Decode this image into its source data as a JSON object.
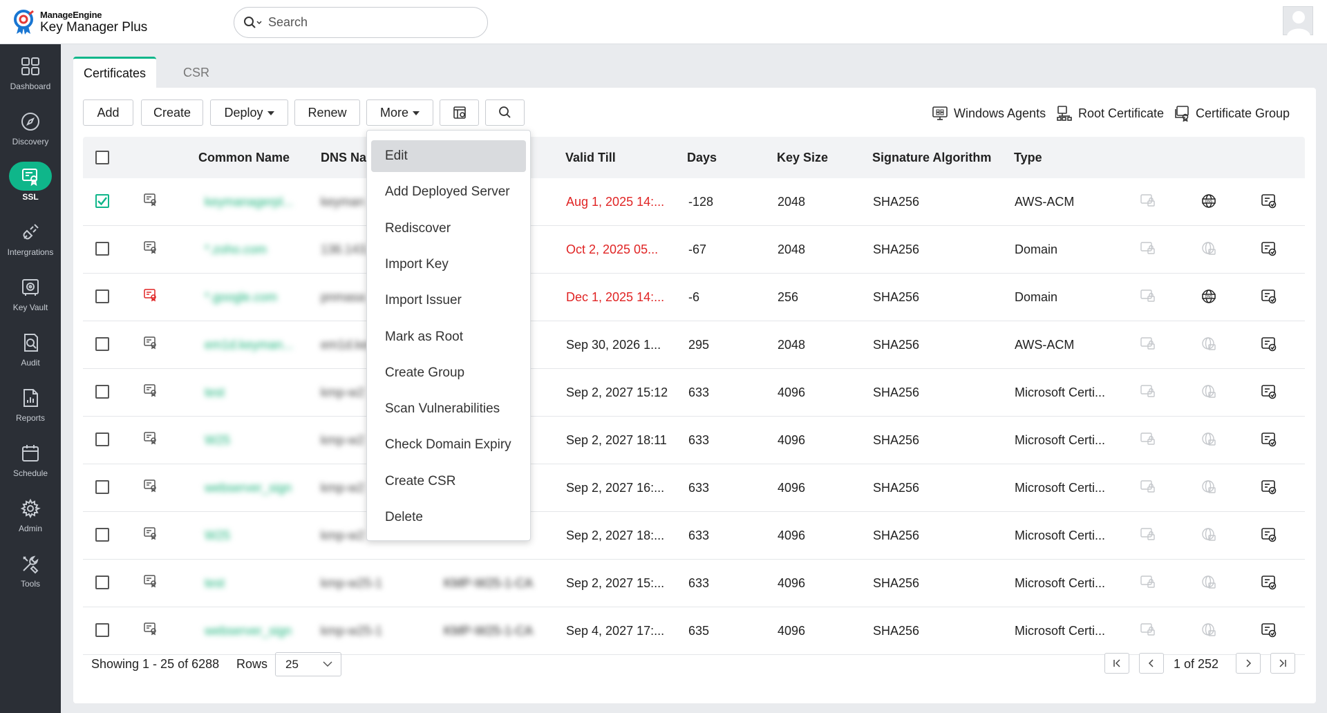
{
  "header": {
    "brand": "ManageEngine",
    "product_main": "Key Manager",
    "product_suffix": "Plus",
    "search_placeholder": "Search"
  },
  "sidebar": {
    "items": [
      {
        "label": "Dashboard",
        "icon": "dashboard-icon"
      },
      {
        "label": "Discovery",
        "icon": "compass-icon"
      },
      {
        "label": "SSL",
        "icon": "certificate-icon",
        "active": true
      },
      {
        "label": "Intergrations",
        "icon": "plug-icon"
      },
      {
        "label": "Key Vault",
        "icon": "vault-icon"
      },
      {
        "label": "Audit",
        "icon": "audit-icon"
      },
      {
        "label": "Reports",
        "icon": "reports-icon"
      },
      {
        "label": "Schedule",
        "icon": "calendar-icon"
      },
      {
        "label": "Admin",
        "icon": "gear-icon"
      },
      {
        "label": "Tools",
        "icon": "tools-icon"
      }
    ]
  },
  "tabs": {
    "certificates": "Certificates",
    "csr": "CSR"
  },
  "toolbar": {
    "add": "Add",
    "create": "Create",
    "deploy": "Deploy",
    "renew": "Renew",
    "more": "More",
    "windows_agents": "Windows Agents",
    "root_certificate": "Root Certificate",
    "certificate_group": "Certificate Group"
  },
  "more_menu": {
    "items": [
      "Edit",
      "Add Deployed Server",
      "Rediscover",
      "Import Key",
      "Import Issuer",
      "Mark as Root",
      "Create Group",
      "Scan Vulnerabilities",
      "Check Domain Expiry",
      "Create CSR",
      "Delete"
    ],
    "highlighted": "Edit"
  },
  "table": {
    "headers": {
      "common_name": "Common Name",
      "dns_name": "DNS Nar",
      "valid_till": "Valid Till",
      "days": "Days",
      "key_size": "Key Size",
      "signature_algorithm": "Signature Algorithm",
      "type": "Type"
    },
    "rows": [
      {
        "checked": true,
        "cn": "keymanagerpl...",
        "dns": "keyman",
        "issuer": "",
        "valid_till": "Aug 1, 2025 14:...",
        "expired": true,
        "days": "-128",
        "key_size": "2048",
        "sig": "SHA256",
        "type": "AWS-ACM",
        "dns_active": true
      },
      {
        "checked": false,
        "cn": "*.zoho.com",
        "dns": "136.143.",
        "issuer": "",
        "valid_till": "Oct 2, 2025 05...",
        "expired": true,
        "days": "-67",
        "key_size": "2048",
        "sig": "SHA256",
        "type": "Domain",
        "dns_active": false
      },
      {
        "checked": false,
        "cn": "*.google.com",
        "dns": "pnmasa",
        "issuer": "",
        "valid_till": "Dec 1, 2025 14:...",
        "expired": true,
        "days": "-6",
        "key_size": "256",
        "sig": "SHA256",
        "type": "Domain",
        "dns_active": true
      },
      {
        "checked": false,
        "cn": "em1d.keyman...",
        "dns": "em1d.ke",
        "issuer": "",
        "valid_till": "Sep 30, 2026 1...",
        "expired": false,
        "days": "295",
        "key_size": "2048",
        "sig": "SHA256",
        "type": "AWS-ACM",
        "dns_active": false
      },
      {
        "checked": false,
        "cn": "test",
        "dns": "kmp-w2",
        "issuer": "",
        "valid_till": "Sep 2, 2027 15:12",
        "expired": false,
        "days": "633",
        "key_size": "4096",
        "sig": "SHA256",
        "type": "Microsoft Certi...",
        "dns_active": false
      },
      {
        "checked": false,
        "cn": "W25",
        "dns": "kmp-w2",
        "issuer": "",
        "valid_till": "Sep 2, 2027 18:11",
        "expired": false,
        "days": "633",
        "key_size": "4096",
        "sig": "SHA256",
        "type": "Microsoft Certi...",
        "dns_active": false
      },
      {
        "checked": false,
        "cn": "webserver_sign",
        "dns": "kmp-w2",
        "issuer": "",
        "valid_till": "Sep 2, 2027 16:...",
        "expired": false,
        "days": "633",
        "key_size": "4096",
        "sig": "SHA256",
        "type": "Microsoft Certi...",
        "dns_active": false
      },
      {
        "checked": false,
        "cn": "W25",
        "dns": "kmp-w2",
        "issuer": "",
        "valid_till": "Sep 2, 2027 18:...",
        "expired": false,
        "days": "633",
        "key_size": "4096",
        "sig": "SHA256",
        "type": "Microsoft Certi...",
        "dns_active": false
      },
      {
        "checked": false,
        "cn": "test",
        "dns": "kmp-w25-1",
        "issuer": "KMP-W25-1-CA",
        "valid_till": "Sep 2, 2027 15:...",
        "expired": false,
        "days": "633",
        "key_size": "4096",
        "sig": "SHA256",
        "type": "Microsoft Certi...",
        "dns_active": false
      },
      {
        "checked": false,
        "cn": "webserver_sign",
        "dns": "kmp-w25-1",
        "issuer": "KMP-W25-1-CA",
        "valid_till": "Sep 4, 2027 17:...",
        "expired": false,
        "days": "635",
        "key_size": "4096",
        "sig": "SHA256",
        "type": "Microsoft Certi...",
        "dns_active": false
      }
    ]
  },
  "footer": {
    "showing": "Showing 1 - 25 of 6288",
    "rows_label": "Rows",
    "rows_value": "25",
    "page_text": "1 of 252"
  },
  "colors": {
    "accent": "#0fb68a",
    "expired": "#e02424",
    "sidebar": "#2b2f36"
  }
}
